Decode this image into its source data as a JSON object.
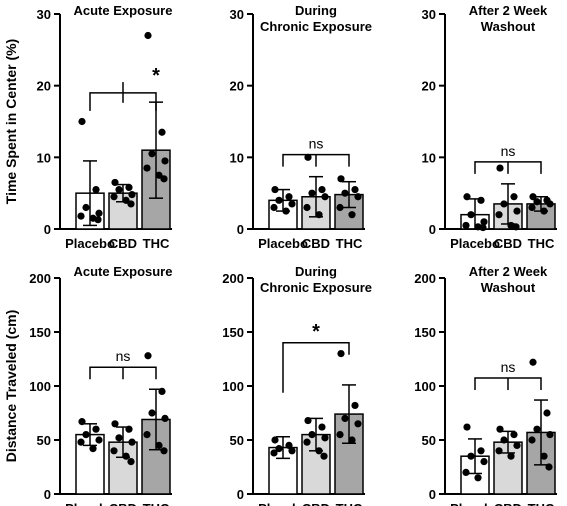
{
  "rows": [
    {
      "ylabel": "Time Spent in Center (%)"
    },
    {
      "ylabel": "Distance Traveled (cm)"
    }
  ],
  "chart_data": [
    {
      "type": "bar",
      "title": "Acute Exposure",
      "categories": [
        "Placebo",
        "CBD",
        "THC"
      ],
      "values": [
        5.0,
        5.0,
        11.0
      ],
      "sd": [
        4.5,
        1.2,
        6.7
      ],
      "points": [
        [
          15,
          5.5,
          3.0,
          2.2,
          1.8,
          1.5,
          1.3
        ],
        [
          6.5,
          5.8,
          5.5,
          4.8,
          4.5,
          4.0,
          3.5
        ],
        [
          27,
          13.5,
          10.5,
          9.5,
          8.5,
          7.5,
          7.0
        ]
      ],
      "fills": [
        "#ffffff",
        "#d9d9d9",
        "#a6a6a6"
      ],
      "yticks": [
        0,
        10,
        20,
        30
      ],
      "ylim": [
        0,
        30
      ],
      "significance": "*",
      "sig_style": "separate"
    },
    {
      "type": "bar",
      "title": "During\nChronic Exposure",
      "categories": [
        "Placebo",
        "CBD",
        "THC"
      ],
      "values": [
        4.0,
        4.5,
        4.8
      ],
      "sd": [
        1.5,
        2.8,
        1.8
      ],
      "points": [
        [
          5.5,
          4.5,
          4.0,
          3.5,
          3.0,
          2.5
        ],
        [
          10,
          5.5,
          5.0,
          4.5,
          3.0,
          2.0
        ],
        [
          7.0,
          5.5,
          5.0,
          4.5,
          3.0,
          2.0
        ]
      ],
      "fills": [
        "#ffffff",
        "#d9d9d9",
        "#a6a6a6"
      ],
      "yticks": [
        0,
        10,
        20,
        30
      ],
      "ylim": [
        0,
        30
      ],
      "significance": "ns",
      "sig_style": "fork"
    },
    {
      "type": "bar",
      "title": "After 2 Week\nWashout",
      "categories": [
        "Placebo",
        "CBD",
        "THC"
      ],
      "values": [
        2.0,
        3.5,
        3.5
      ],
      "sd": [
        2.2,
        2.8,
        1.0
      ],
      "points": [
        [
          4.5,
          4.0,
          2.0,
          1.0,
          0.5,
          0.3,
          0.2
        ],
        [
          8.5,
          4.5,
          3.5,
          2.5,
          2.0,
          0.5,
          0.3
        ],
        [
          4.5,
          4.0,
          3.8,
          3.5,
          3.0,
          2.5
        ]
      ],
      "fills": [
        "#ffffff",
        "#d9d9d9",
        "#a6a6a6"
      ],
      "yticks": [
        0,
        10,
        20,
        30
      ],
      "ylim": [
        0,
        30
      ],
      "significance": "ns",
      "sig_style": "fork"
    },
    {
      "type": "bar",
      "title": "Acute Exposure",
      "categories": [
        "Placebo",
        "CBD",
        "THC"
      ],
      "values": [
        55,
        48,
        69
      ],
      "sd": [
        10,
        14,
        28
      ],
      "points": [
        [
          67,
          60,
          55,
          50,
          48,
          42
        ],
        [
          65,
          60,
          52,
          48,
          40,
          35,
          30
        ],
        [
          128,
          95,
          75,
          70,
          55,
          45,
          40
        ]
      ],
      "fills": [
        "#ffffff",
        "#d9d9d9",
        "#a6a6a6"
      ],
      "yticks": [
        0,
        50,
        100,
        150,
        200
      ],
      "ylim": [
        0,
        200
      ],
      "significance": "ns",
      "sig_style": "fork"
    },
    {
      "type": "bar",
      "title": "During\nChronic Exposure",
      "categories": [
        "Placebo",
        "CBD",
        "THC"
      ],
      "values": [
        43,
        55,
        74
      ],
      "sd": [
        10,
        15,
        27
      ],
      "points": [
        [
          50,
          45,
          42,
          40,
          38
        ],
        [
          68,
          62,
          55,
          52,
          48,
          40,
          35
        ],
        [
          130,
          82,
          70,
          65,
          55,
          50
        ]
      ],
      "fills": [
        "#ffffff",
        "#d9d9d9",
        "#a6a6a6"
      ],
      "yticks": [
        0,
        50,
        100,
        150,
        200
      ],
      "ylim": [
        0,
        200
      ],
      "significance": "*",
      "sig_style": "pair"
    },
    {
      "type": "bar",
      "title": "After 2 Week\nWashout",
      "categories": [
        "Placebo",
        "CBD",
        "THC"
      ],
      "values": [
        35,
        48,
        57
      ],
      "sd": [
        16,
        10,
        30
      ],
      "points": [
        [
          62,
          40,
          35,
          30,
          20,
          15
        ],
        [
          60,
          55,
          50,
          45,
          40,
          35
        ],
        [
          122,
          75,
          60,
          55,
          50,
          35,
          25
        ]
      ],
      "fills": [
        "#ffffff",
        "#d9d9d9",
        "#a6a6a6"
      ],
      "yticks": [
        0,
        50,
        100,
        150,
        200
      ],
      "ylim": [
        0,
        200
      ],
      "significance": "ns",
      "sig_style": "fork"
    }
  ]
}
